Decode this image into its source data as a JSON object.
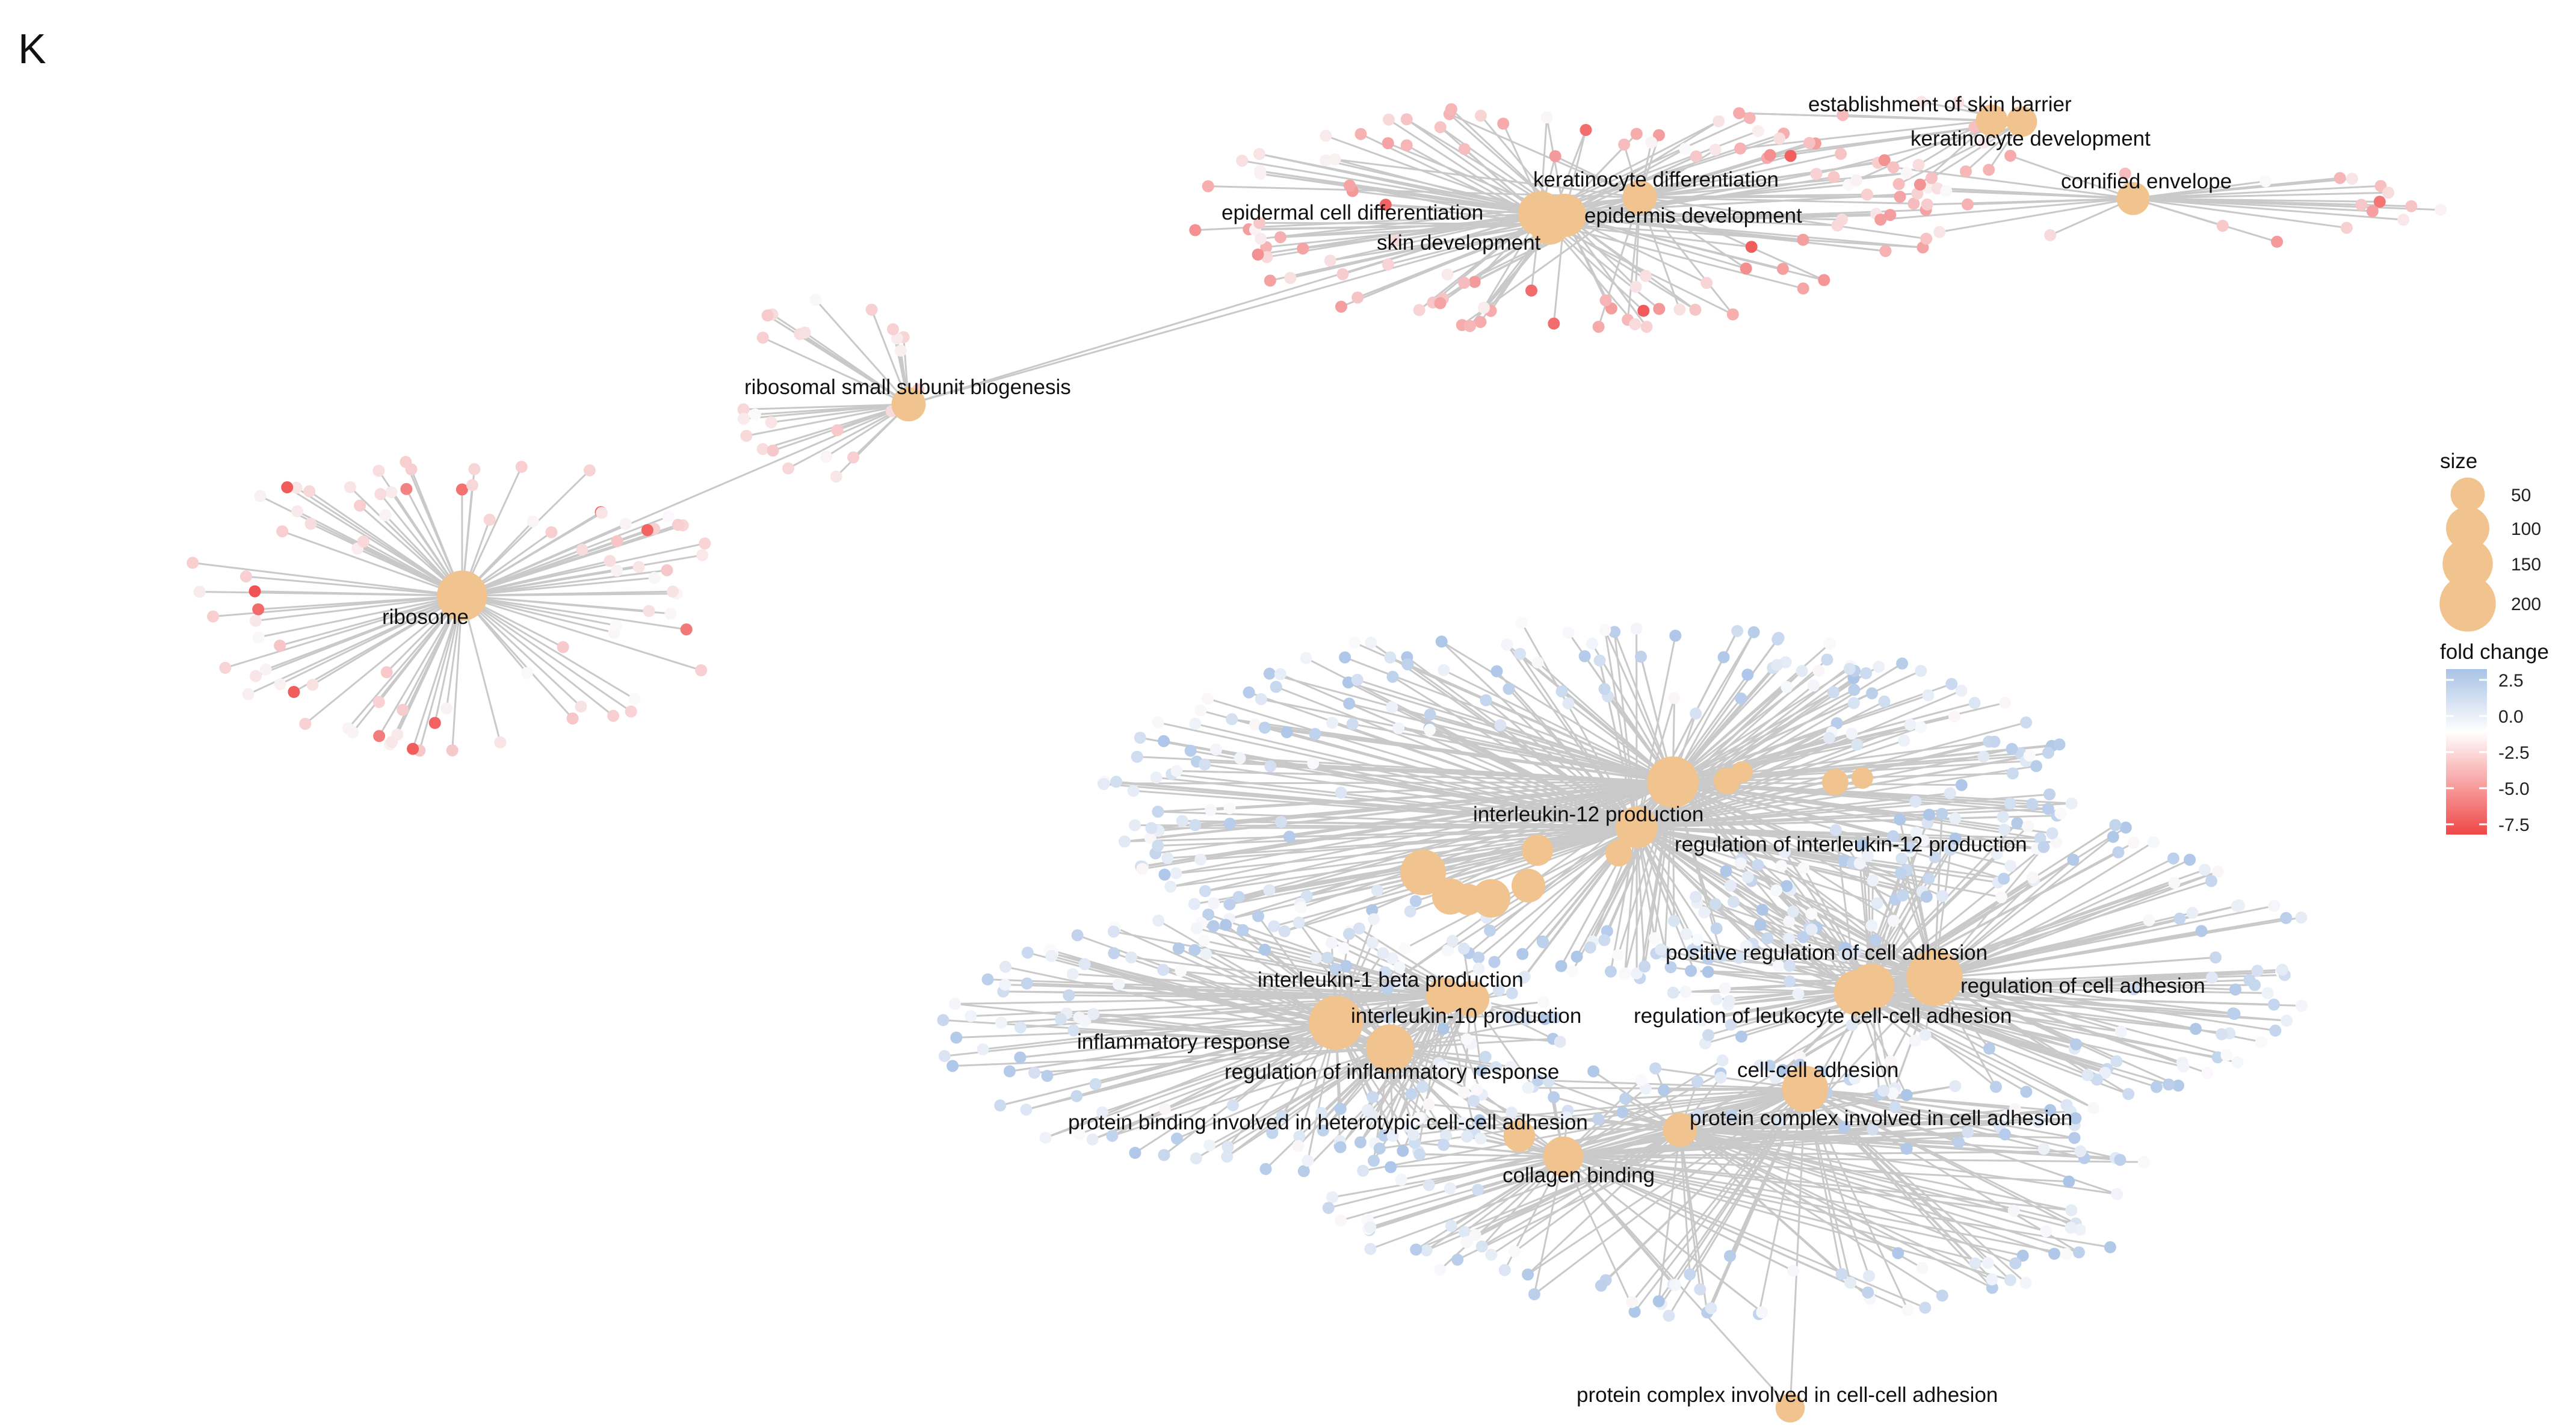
{
  "panel_label": "K",
  "colors": {
    "term_node": "#f1c38f",
    "edge": "#c9c9c9",
    "gene_up": "#b3c7e4",
    "gene_neutral": "#f4f6fa",
    "gene_down": "#ee5a5a"
  },
  "terms": [
    {
      "id": "skin_barrier",
      "label": "establishment of skin barrier",
      "size": 40
    },
    {
      "id": "keratinocyte_dev",
      "label": "keratinocyte development",
      "size": 35
    },
    {
      "id": "keratinocyte_diff",
      "label": "keratinocyte differentiation",
      "size": 50
    },
    {
      "id": "cornified",
      "label": "cornified envelope",
      "size": 45
    },
    {
      "id": "epidermal_diff",
      "label": "epidermal cell differentiation",
      "size": 110
    },
    {
      "id": "epidermis_dev",
      "label": "epidermis development",
      "size": 100
    },
    {
      "id": "skin_dev",
      "label": "skin development",
      "size": 90
    },
    {
      "id": "ribosomal_ssu",
      "label": "ribosomal small subunit biogenesis",
      "size": 50
    },
    {
      "id": "ribosome",
      "label": "ribosome",
      "size": 150
    },
    {
      "id": "il12",
      "label": "interleukin-12 production",
      "size": 160
    },
    {
      "id": "reg_il12",
      "label": "regulation of interleukin-12 production",
      "size": 90
    },
    {
      "id": "pos_reg_adhesion",
      "label": "positive regulation of cell adhesion",
      "size": 120
    },
    {
      "id": "il1b",
      "label": "interleukin-1 beta production",
      "size": 60
    },
    {
      "id": "reg_adhesion",
      "label": "regulation of cell adhesion",
      "size": 200
    },
    {
      "id": "il10",
      "label": "interleukin-10 production",
      "size": 60
    },
    {
      "id": "reg_leuk_adhesion",
      "label": "regulation of leukocyte cell-cell adhesion",
      "size": 110
    },
    {
      "id": "inflammatory",
      "label": "inflammatory response",
      "size": 180
    },
    {
      "id": "reg_inflammatory",
      "label": "regulation of inflammatory response",
      "size": 130
    },
    {
      "id": "cell_cell_adhesion",
      "label": "cell-cell adhesion",
      "size": 120
    },
    {
      "id": "hetero_binding",
      "label": "protein binding involved in heterotypic cell-cell adhesion",
      "size": 40
    },
    {
      "id": "complex_adhesion",
      "label": "protein complex involved in cell adhesion",
      "size": 50
    },
    {
      "id": "collagen",
      "label": "collagen binding",
      "size": 80
    },
    {
      "id": "complex_cc_adhesion",
      "label": "protein complex involved in cell-cell adhesion",
      "size": 30
    }
  ],
  "legend": {
    "size_title": "size",
    "size_values": [
      50,
      100,
      150,
      200
    ],
    "size_labels": [
      "50",
      "100",
      "150",
      "200"
    ],
    "fold_title": "fold change",
    "fold_values": [
      2.5,
      0.0,
      -2.5,
      -5.0,
      -7.5
    ],
    "fold_labels": [
      "2.5",
      "0.0",
      "-2.5",
      "-5.0",
      "-7.5"
    ]
  }
}
